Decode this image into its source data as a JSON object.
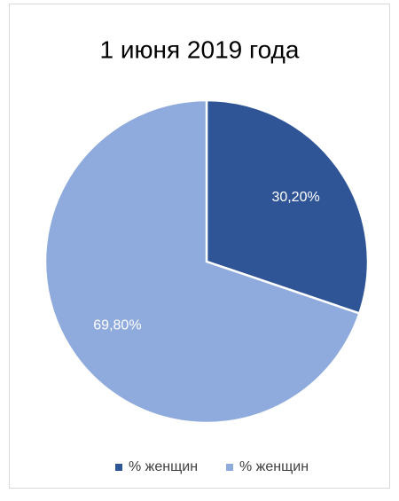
{
  "chart_data": {
    "type": "pie",
    "title": "1 июня 2019 года",
    "categories": [
      "% женщин",
      "% женщин"
    ],
    "values": [
      30.2,
      69.8
    ],
    "value_labels": [
      "30,20%",
      "69,80%"
    ],
    "colors": [
      "#2f5597",
      "#8faadc"
    ],
    "legend": "bottom"
  }
}
